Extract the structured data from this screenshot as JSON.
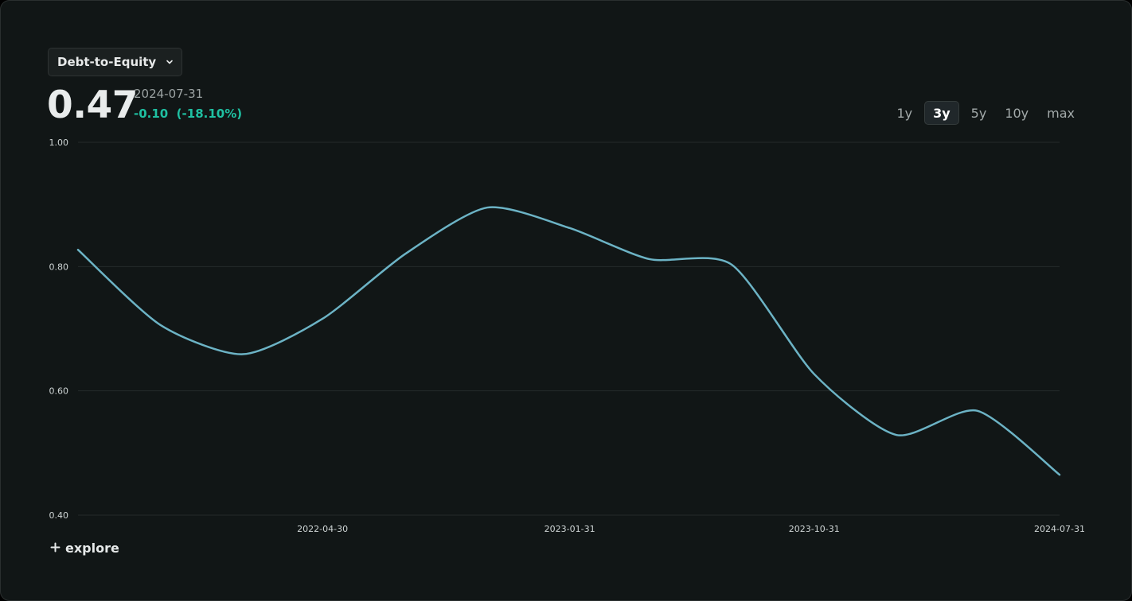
{
  "metric_select": {
    "label": "Debt-to-Equity",
    "icon": "chevron-down-icon"
  },
  "summary": {
    "value": "0.47",
    "date": "2024-07-31",
    "change": "-0.10  (-18.10%)"
  },
  "ranges": [
    {
      "label": "1y",
      "active": false
    },
    {
      "label": "3y",
      "active": true
    },
    {
      "label": "5y",
      "active": false
    },
    {
      "label": "10y",
      "active": false
    },
    {
      "label": "max",
      "active": false
    }
  ],
  "explore": {
    "label": "explore",
    "icon": "plus-icon"
  },
  "colors": {
    "line": "#6cb3c5",
    "positive": "#1fc0a2",
    "grid": "#252b2b"
  },
  "chart_data": {
    "type": "line",
    "x": [
      "2021-07-31",
      "2021-10-31",
      "2022-01-31",
      "2022-04-30",
      "2022-07-31",
      "2022-10-31",
      "2023-01-31",
      "2023-04-30",
      "2023-07-31",
      "2023-10-31",
      "2024-01-31",
      "2024-04-30",
      "2024-07-31"
    ],
    "series": [
      {
        "values": [
          0.827,
          0.706,
          0.659,
          0.716,
          0.82,
          0.895,
          0.862,
          0.812,
          0.803,
          0.627,
          0.529,
          0.568,
          0.465
        ]
      }
    ],
    "ylim": [
      0.4,
      1.0
    ],
    "yticks": [
      "0.40",
      "0.60",
      "0.80",
      "1.00"
    ],
    "xticks": [
      "2022-04-30",
      "2023-01-31",
      "2023-10-31",
      "2024-07-31"
    ],
    "grid": true
  }
}
